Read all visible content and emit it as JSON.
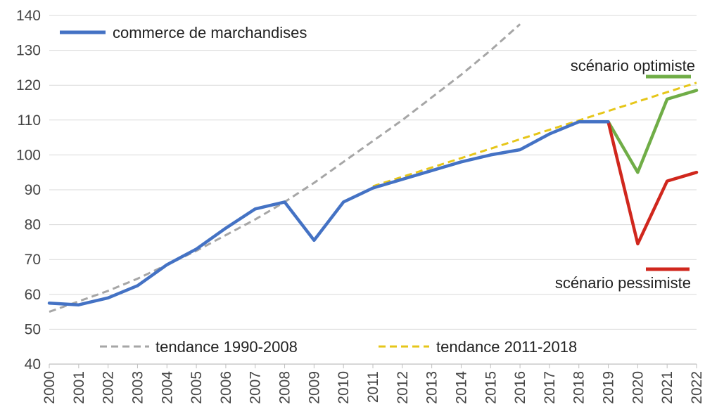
{
  "chart_data": {
    "type": "line",
    "title": "",
    "xlabel": "",
    "ylabel": "",
    "ylim": [
      40,
      140
    ],
    "yticks": [
      40,
      50,
      60,
      70,
      80,
      90,
      100,
      110,
      120,
      130,
      140
    ],
    "categories": [
      "2000",
      "2001",
      "2002",
      "2003",
      "2004",
      "2005",
      "2006",
      "2007",
      "2008",
      "2009",
      "2010",
      "2011",
      "2012",
      "2013",
      "2014",
      "2015",
      "2016",
      "2017",
      "2018",
      "2019",
      "2020",
      "2021",
      "2022"
    ],
    "grid": "horizontal",
    "series": [
      {
        "name": "commerce de marchandises",
        "color": "#4472C4",
        "style": "solid",
        "x": [
          2000,
          2001,
          2002,
          2003,
          2004,
          2005,
          2006,
          2007,
          2008,
          2009,
          2010,
          2011,
          2012,
          2013,
          2014,
          2015,
          2016,
          2017,
          2018,
          2019
        ],
        "values": [
          57.5,
          57,
          59,
          62.5,
          68.5,
          73,
          79,
          84.5,
          86.5,
          75.5,
          86.5,
          90.5,
          93,
          95.5,
          98,
          100,
          101.5,
          106,
          109.5,
          109.5
        ]
      },
      {
        "name": "tendance 1990-2008",
        "color": "#A6A6A6",
        "style": "dashed",
        "x": [
          2000,
          2001,
          2002,
          2003,
          2004,
          2005,
          2006,
          2007,
          2008,
          2009,
          2010,
          2011,
          2012,
          2013,
          2014,
          2015,
          2016
        ],
        "values": [
          55,
          58,
          61,
          64.5,
          68.5,
          72.5,
          77,
          81.5,
          86.5,
          92,
          98,
          104,
          110,
          116.5,
          123,
          130,
          137.5
        ]
      },
      {
        "name": "tendance 2011-2018",
        "color": "#E6C619",
        "style": "dashed",
        "x": [
          2011,
          2012,
          2013,
          2014,
          2015,
          2016,
          2017,
          2018,
          2019,
          2020,
          2021,
          2022
        ],
        "values": [
          91,
          93.7,
          96.4,
          99.1,
          101.8,
          104.5,
          107.2,
          109.9,
          112.6,
          115.3,
          118,
          120.7
        ]
      },
      {
        "name": "scénario optimiste",
        "color": "#70AD47",
        "style": "solid",
        "x": [
          2019,
          2020,
          2021,
          2022
        ],
        "values": [
          109.5,
          95,
          116,
          118.5
        ]
      },
      {
        "name": "scénario pessimiste",
        "color": "#D0271D",
        "style": "solid",
        "x": [
          2019,
          2020,
          2021,
          2022
        ],
        "values": [
          109.5,
          74.5,
          92.5,
          95
        ]
      }
    ]
  }
}
